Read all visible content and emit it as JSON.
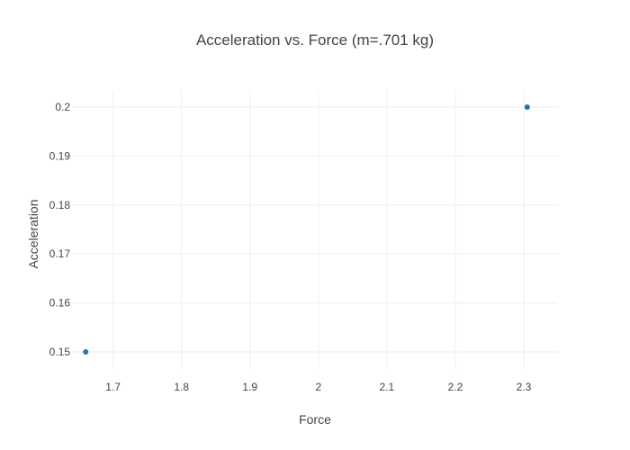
{
  "chart_data": {
    "type": "scatter",
    "title": "Acceleration vs. Force (m=.701 kg)",
    "xlabel": "Force",
    "ylabel": "Acceleration",
    "xlim": [
      1.64,
      2.35
    ],
    "ylim": [
      0.1465,
      0.2035
    ],
    "xticks": [
      1.7,
      1.8,
      1.9,
      2,
      2.1,
      2.2,
      2.3
    ],
    "xtick_labels": [
      "1.7",
      "1.8",
      "1.9",
      "2",
      "2.1",
      "2.2",
      "2.3"
    ],
    "yticks": [
      0.15,
      0.16,
      0.17,
      0.18,
      0.19,
      0.2
    ],
    "ytick_labels": [
      "0.15",
      "0.16",
      "0.17",
      "0.18",
      "0.19",
      "0.2"
    ],
    "grid": true,
    "series": [
      {
        "color": "#1f77b4",
        "points": [
          {
            "x": 1.66,
            "y": 0.15
          },
          {
            "x": 2.305,
            "y": 0.2
          }
        ]
      }
    ]
  }
}
